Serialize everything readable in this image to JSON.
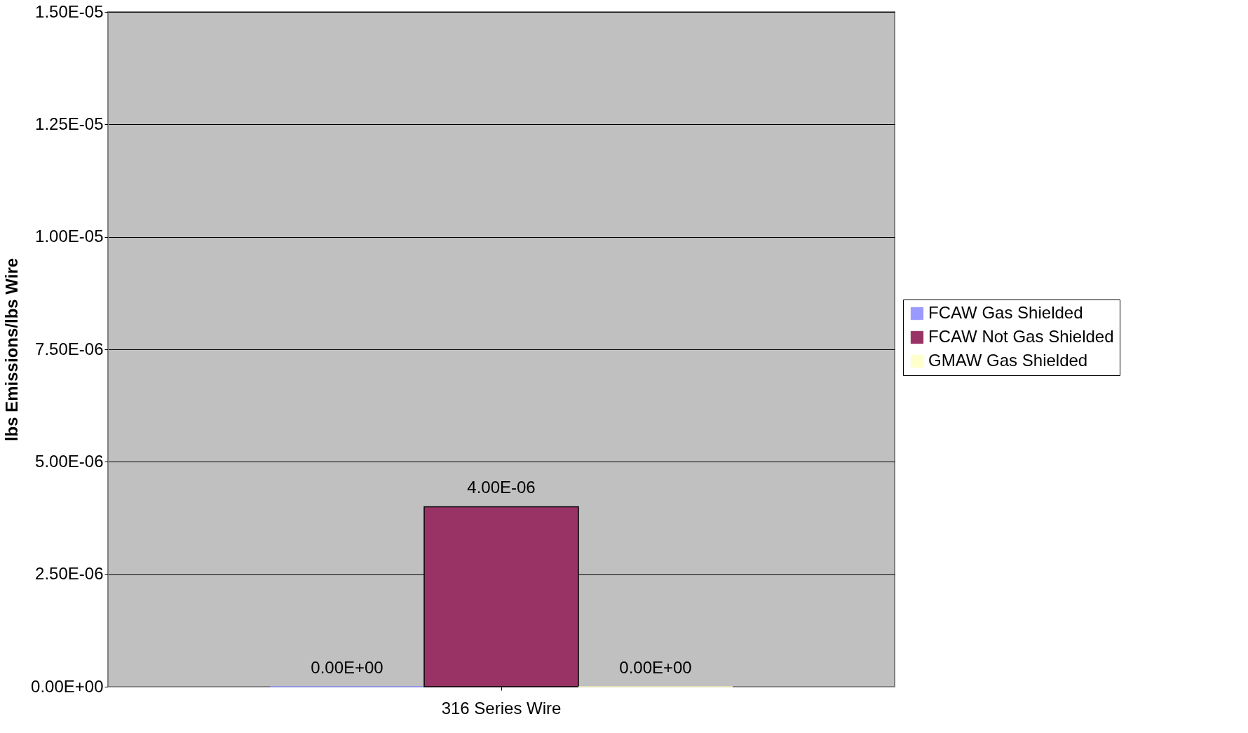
{
  "chart_data": {
    "type": "bar",
    "ylabel": "lbs Emissions/lbs Wire",
    "categories": [
      "316 Series Wire"
    ],
    "series": [
      {
        "name": "FCAW Gas Shielded",
        "color": "#9999ff",
        "values": [
          0
        ],
        "value_labels": [
          "0.00E+00"
        ]
      },
      {
        "name": "FCAW Not Gas Shielded",
        "color": "#993366",
        "values": [
          4e-06
        ],
        "value_labels": [
          "4.00E-06"
        ]
      },
      {
        "name": "GMAW Gas Shielded",
        "color": "#ffffcc",
        "values": [
          0
        ],
        "value_labels": [
          "0.00E+00"
        ]
      }
    ],
    "ylim": [
      0,
      1.5e-05
    ],
    "yticks": [
      {
        "value": 0,
        "label": "0.00E+00"
      },
      {
        "value": 2.5e-06,
        "label": "2.50E-06"
      },
      {
        "value": 5e-06,
        "label": "5.00E-06"
      },
      {
        "value": 7.5e-06,
        "label": "7.50E-06"
      },
      {
        "value": 1e-05,
        "label": "1.00E-05"
      },
      {
        "value": 1.25e-05,
        "label": "1.25E-05"
      },
      {
        "value": 1.5e-05,
        "label": "1.50E-05"
      }
    ],
    "grid": "y",
    "legend": "right"
  }
}
